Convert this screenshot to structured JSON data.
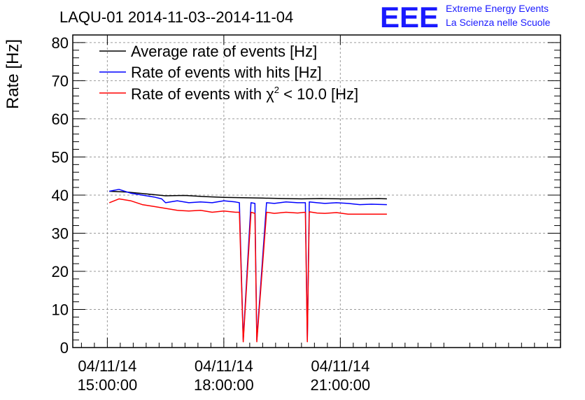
{
  "chart_data": {
    "type": "line",
    "title": "LAQU-01 2014-11-03--2014-11-04",
    "ylabel": "Rate [Hz]",
    "xlabel": "",
    "ylim": [
      0,
      82
    ],
    "xlim_hours": [
      14.11,
      26.67
    ],
    "grid": true,
    "legend_position": "top-left",
    "yticks": [
      0,
      10,
      20,
      30,
      40,
      50,
      60,
      70,
      80
    ],
    "yticklabels": [
      "0",
      "10",
      "20",
      "30",
      "40",
      "50",
      "60",
      "70",
      "80"
    ],
    "xticks_hours": [
      15,
      18,
      21
    ],
    "xticklabels": [
      {
        "date": "04/11/14",
        "time": "15:00:00"
      },
      {
        "date": "04/11/14",
        "time": "18:00:00"
      },
      {
        "date": "04/11/14",
        "time": "21:00:00"
      }
    ],
    "legend": [
      {
        "label": "Average rate of events [Hz]",
        "color": "#000000"
      },
      {
        "label": "Rate of events with hits [Hz]",
        "color": "#0000ff"
      },
      {
        "label_prefix": "Rate of events with ",
        "label_symbol": "χ",
        "label_sup": "2",
        "label_suffix": " < 10.0 [Hz]",
        "color": "#ff0000"
      }
    ],
    "series": [
      {
        "name": "Average rate of events [Hz]",
        "color": "#000000",
        "x_hours": [
          15.05,
          15.5,
          16.0,
          16.5,
          17.0,
          17.5,
          18.0,
          18.5,
          19.0,
          19.5,
          20.0,
          20.5,
          21.0,
          21.5,
          22.0,
          22.2
        ],
        "values": [
          41.0,
          40.8,
          40.3,
          39.8,
          39.9,
          39.6,
          39.4,
          39.3,
          39.2,
          39.1,
          39.0,
          39.1,
          39.0,
          39.0,
          39.1,
          39.0
        ]
      },
      {
        "name": "Rate of events with hits [Hz]",
        "color": "#0000ff",
        "x_hours": [
          15.05,
          15.3,
          15.6,
          15.9,
          16.2,
          16.4,
          16.5,
          16.8,
          17.1,
          17.4,
          17.7,
          18.0,
          18.3,
          18.4,
          18.5,
          18.7,
          18.8,
          18.85,
          19.1,
          19.3,
          19.6,
          19.9,
          20.1,
          20.15,
          20.2,
          20.4,
          20.6,
          20.9,
          21.2,
          21.5,
          21.8,
          22.2
        ],
        "values": [
          41.0,
          41.5,
          40.5,
          40.0,
          39.5,
          39.0,
          38.0,
          38.5,
          38.0,
          38.2,
          38.0,
          38.5,
          38.2,
          38.0,
          2.0,
          38.0,
          37.8,
          2.0,
          38.0,
          37.8,
          38.2,
          38.0,
          38.0,
          2.0,
          38.2,
          38.0,
          37.8,
          38.0,
          37.8,
          37.5,
          37.6,
          37.5
        ]
      },
      {
        "name": "Rate of events with χ2 < 10.0 [Hz]",
        "color": "#ff0000",
        "x_hours": [
          15.05,
          15.3,
          15.6,
          15.9,
          16.2,
          16.5,
          16.8,
          17.1,
          17.4,
          17.7,
          18.0,
          18.3,
          18.4,
          18.5,
          18.7,
          18.8,
          18.85,
          19.1,
          19.3,
          19.6,
          19.9,
          20.1,
          20.15,
          20.2,
          20.4,
          20.6,
          20.9,
          21.2,
          21.5,
          21.8,
          22.2
        ],
        "values": [
          38.0,
          39.0,
          38.5,
          37.5,
          37.0,
          36.5,
          36.0,
          35.8,
          36.0,
          35.5,
          35.8,
          35.5,
          35.5,
          1.5,
          35.5,
          35.2,
          1.5,
          35.5,
          35.2,
          35.5,
          35.3,
          35.5,
          1.5,
          35.6,
          35.3,
          35.2,
          35.4,
          35.0,
          35.0,
          35.0,
          35.0
        ]
      }
    ]
  },
  "logo": {
    "mark": "EEE",
    "line1": "Extreme Energy Events",
    "line2": "La Scienza nelle Scuole",
    "color": "#1a1aff"
  }
}
